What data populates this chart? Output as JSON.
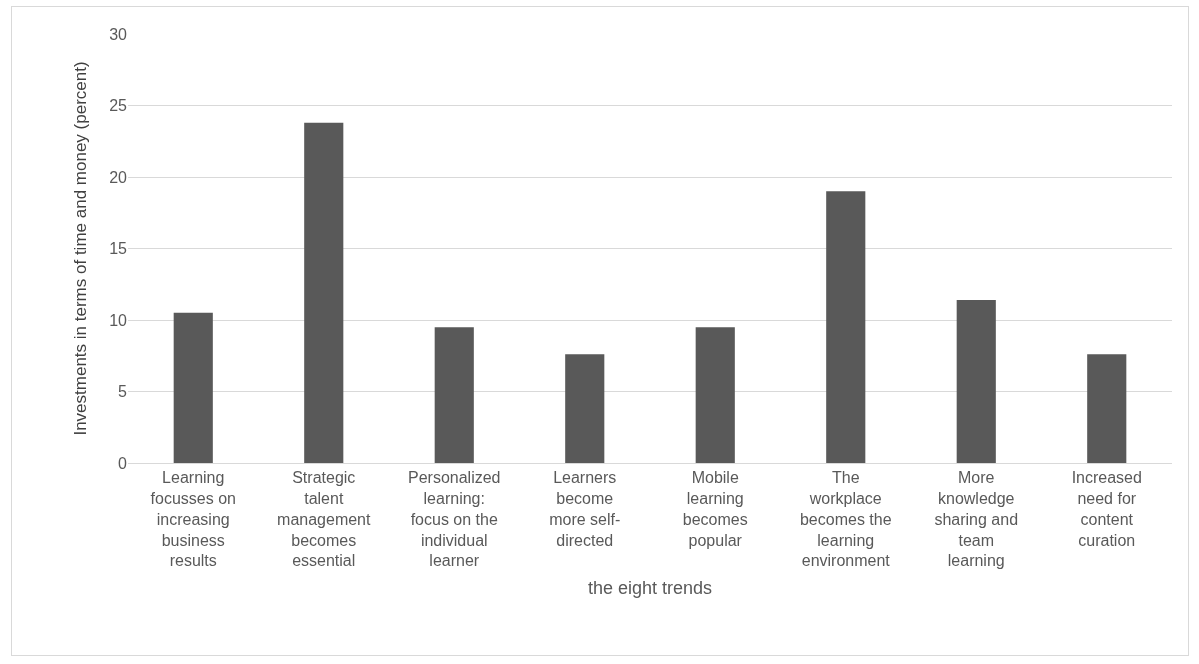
{
  "chart_data": {
    "type": "bar",
    "xlabel": "the eight trends",
    "ylabel": "Investments in terms of time and money (percent)",
    "categories": [
      "Learning focusses on increasing business results",
      "Strategic talent management becomes essential",
      "Personalized learning: focus on the individual learner",
      "Learners become more self-directed",
      "Mobile learning becomes popular",
      "The workplace becomes the learning environment",
      "More knowledge sharing and team learning",
      "Increased need for content curation"
    ],
    "values": [
      10.5,
      23.8,
      9.5,
      7.6,
      9.5,
      19.0,
      11.4,
      7.6
    ],
    "color": "#595959",
    "ylim": [
      0,
      30
    ],
    "yticks": [
      0,
      5,
      10,
      15,
      20,
      25,
      30
    ],
    "grid": "y"
  }
}
